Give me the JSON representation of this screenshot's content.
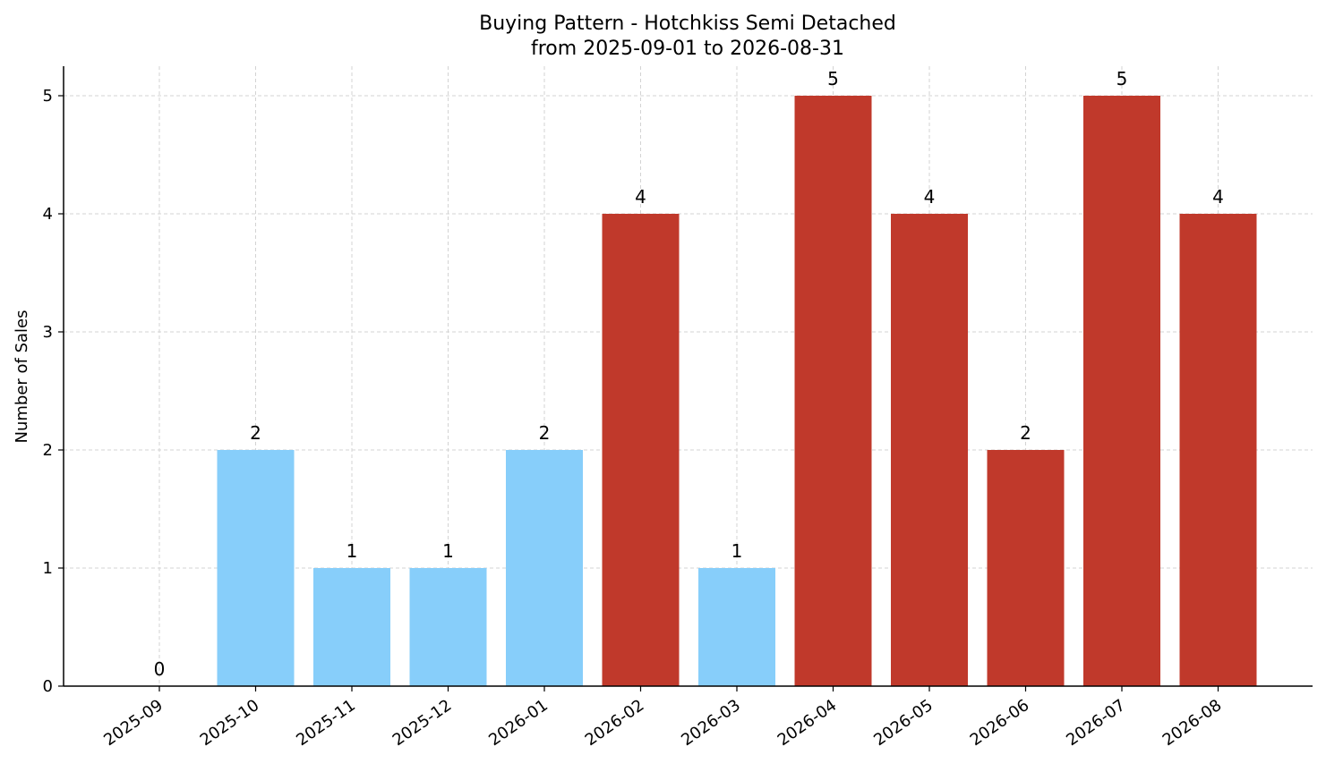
{
  "chart_data": {
    "type": "bar",
    "title": "Buying Pattern - Hotchkiss Semi Detached",
    "subtitle": "from 2025-09-01 to 2026-08-31",
    "xlabel": "",
    "ylabel": "Number of Sales",
    "categories": [
      "2025-09",
      "2025-10",
      "2025-11",
      "2025-12",
      "2026-01",
      "2026-02",
      "2026-03",
      "2026-04",
      "2026-05",
      "2026-06",
      "2026-07",
      "2026-08"
    ],
    "values": [
      0,
      2,
      1,
      1,
      2,
      4,
      1,
      5,
      4,
      2,
      5,
      4
    ],
    "bar_colors": [
      "#87cefa",
      "#87cefa",
      "#87cefa",
      "#87cefa",
      "#87cefa",
      "#c0392b",
      "#87cefa",
      "#c0392b",
      "#c0392b",
      "#c0392b",
      "#c0392b",
      "#c0392b"
    ],
    "yticks": [
      0,
      1,
      2,
      3,
      4,
      5
    ],
    "ylim": [
      0,
      5.25
    ],
    "grid": true,
    "colors": {
      "light": "#87cefa",
      "dark": "#c0392b",
      "grid": "#d3d3d3"
    }
  }
}
